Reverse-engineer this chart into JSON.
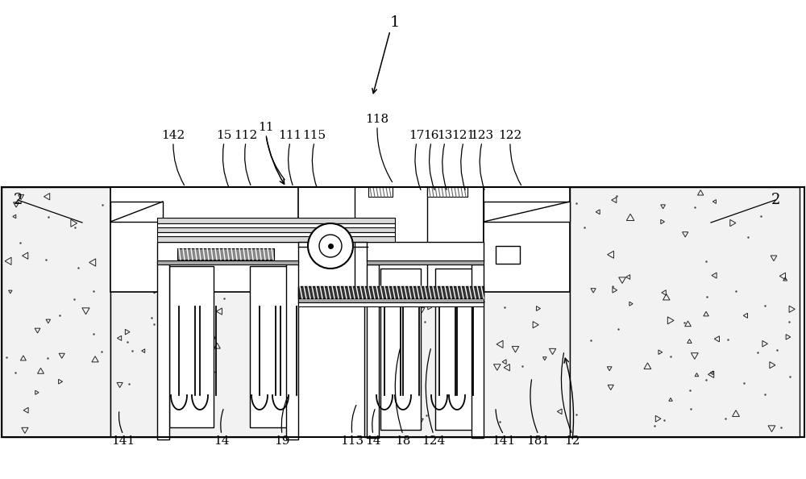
{
  "bg_color": "#ffffff",
  "lc": "#000000",
  "concrete_bg": "#f2f2f2",
  "gray_fill": "#c8c8c8",
  "light_gray": "#e0e0e0",
  "figsize": [
    10.0,
    5.94
  ],
  "dpi": 100,
  "top_labels": [
    [
      "142",
      215,
      168,
      230,
      232
    ],
    [
      "15",
      278,
      168,
      285,
      235
    ],
    [
      "112",
      305,
      168,
      312,
      232
    ],
    [
      "11",
      330,
      158,
      355,
      225
    ],
    [
      "111",
      360,
      168,
      364,
      232
    ],
    [
      "115",
      390,
      168,
      394,
      235
    ],
    [
      "118",
      468,
      148,
      488,
      228
    ],
    [
      "17",
      517,
      168,
      523,
      238
    ],
    [
      "16",
      535,
      168,
      540,
      238
    ],
    [
      "13",
      552,
      168,
      555,
      238
    ],
    [
      "121",
      575,
      168,
      578,
      238
    ],
    [
      "123",
      598,
      168,
      602,
      238
    ],
    [
      "122",
      633,
      168,
      648,
      232
    ]
  ],
  "bot_labels": [
    [
      "141",
      153,
      547,
      148,
      508
    ],
    [
      "14",
      275,
      547,
      278,
      505
    ],
    [
      "19",
      350,
      547,
      358,
      490
    ],
    [
      "113",
      437,
      547,
      443,
      500
    ],
    [
      "14",
      463,
      547,
      466,
      505
    ],
    [
      "18",
      500,
      547,
      497,
      430
    ],
    [
      "124",
      538,
      547,
      535,
      430
    ],
    [
      "141",
      625,
      547,
      615,
      505
    ],
    [
      "181",
      668,
      547,
      660,
      468
    ],
    [
      "12",
      710,
      547,
      700,
      435
    ]
  ]
}
